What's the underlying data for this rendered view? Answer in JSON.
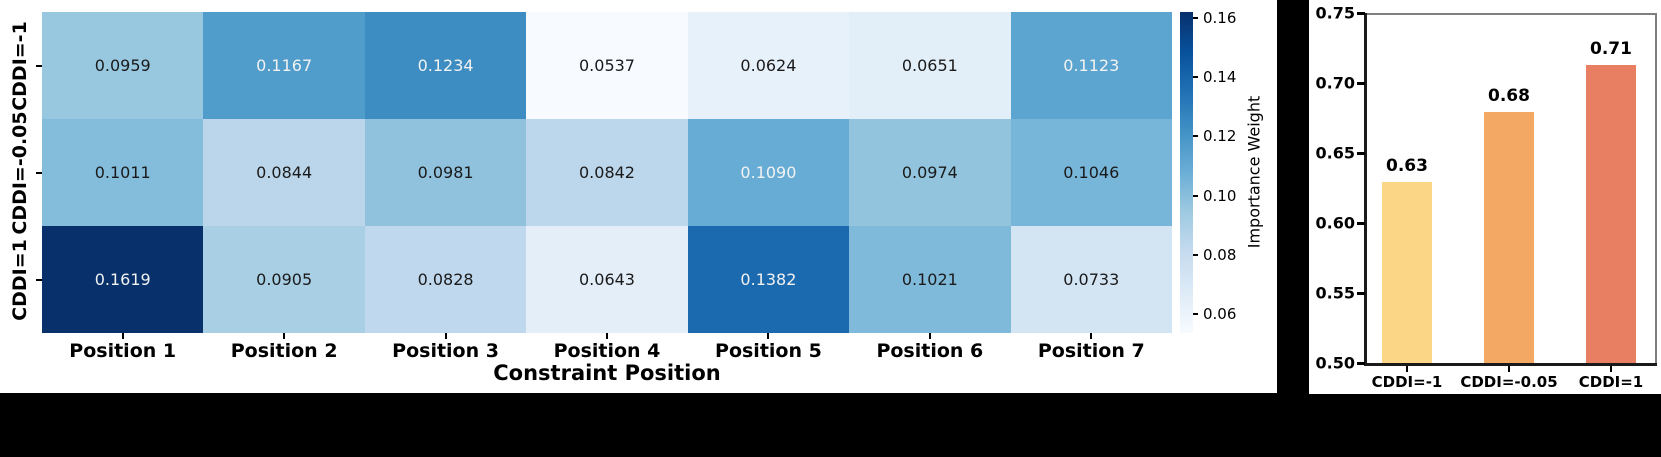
{
  "figure": {
    "background_color": "#000000",
    "panel_color": "#ffffff"
  },
  "chart_data": [
    {
      "type": "heatmap",
      "xlabel": "Constraint Position",
      "row_labels": [
        "CDDI=-1",
        "CDDI=-0.05",
        "CDDI=1"
      ],
      "col_labels": [
        "Position 1",
        "Position 2",
        "Position 3",
        "Position 4",
        "Position 5",
        "Position 6",
        "Position 7"
      ],
      "values": [
        [
          "0.0959",
          "0.1167",
          "0.1234",
          "0.0537",
          "0.0624",
          "0.0651",
          "0.1123"
        ],
        [
          "0.1011",
          "0.0844",
          "0.0981",
          "0.0842",
          "0.1090",
          "0.0974",
          "0.1046"
        ],
        [
          "0.1619",
          "0.0905",
          "0.0828",
          "0.0643",
          "0.1382",
          "0.1021",
          "0.0733"
        ]
      ],
      "colormap": "Blues",
      "vmin": 0.0537,
      "vmax": 0.1619,
      "grid": false,
      "colorbar": {
        "label": "Importance Weight",
        "ticks": [
          "0.16",
          "0.14",
          "0.12",
          "0.10",
          "0.08",
          "0.06"
        ]
      }
    },
    {
      "type": "bar",
      "categories": [
        "CDDI=-1",
        "CDDI=-0.05",
        "CDDI=1"
      ],
      "values": [
        0.629,
        0.679,
        0.713
      ],
      "bar_labels": [
        "0.63",
        "0.68",
        "0.71"
      ],
      "bar_colors": [
        "#FBD687",
        "#F3A963",
        "#E87F62"
      ],
      "ylim": [
        0.5,
        0.75
      ],
      "yticks": [
        "0.75",
        "0.70",
        "0.65",
        "0.60",
        "0.55",
        "0.50"
      ],
      "grid": false,
      "legend": "none"
    }
  ]
}
